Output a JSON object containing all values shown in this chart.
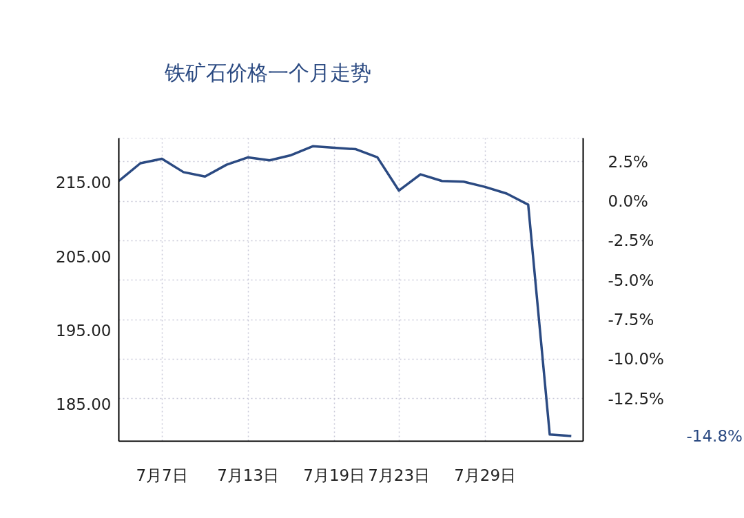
{
  "chart_data": {
    "type": "line",
    "title": "铁矿石价格一个月走势",
    "categories": [
      null,
      null,
      "7月7日",
      null,
      null,
      null,
      "7月13日",
      null,
      null,
      null,
      "7月19日",
      null,
      null,
      "7月23日",
      null,
      null,
      null,
      "7月29日",
      null,
      null,
      null,
      null
    ],
    "series": [
      {
        "color": "#2b4a82",
        "values": [
          215.2,
          217.6,
          218.2,
          216.4,
          215.8,
          217.4,
          218.4,
          218.0,
          218.7,
          219.9,
          219.7,
          219.5,
          218.4,
          213.9,
          216.1,
          215.2,
          215.1,
          214.4,
          213.5,
          212.0,
          180.9,
          180.7
        ]
      }
    ],
    "ylim": [
      180.0,
      221.0
    ],
    "yticks": [
      {
        "value": 185,
        "label": "185.00"
      },
      {
        "value": 195,
        "label": "195.00"
      },
      {
        "value": 205,
        "label": "205.00"
      },
      {
        "value": 215,
        "label": "215.00"
      }
    ],
    "y2lim": [
      -15.2,
      4.0
    ],
    "y2ticks": [
      {
        "value": 2.5,
        "label": "2.5%"
      },
      {
        "value": 0,
        "label": "0.0%"
      },
      {
        "value": -2.5,
        "label": "-2.5%"
      },
      {
        "value": -5,
        "label": "-5.0%"
      },
      {
        "value": -7.5,
        "label": "-7.5%"
      },
      {
        "value": -10,
        "label": "-10.0%"
      },
      {
        "value": -12.5,
        "label": "-12.5%"
      }
    ],
    "annotations": [
      "-14.8%"
    ],
    "grid": true,
    "marker": "none",
    "line_style": "solid"
  }
}
